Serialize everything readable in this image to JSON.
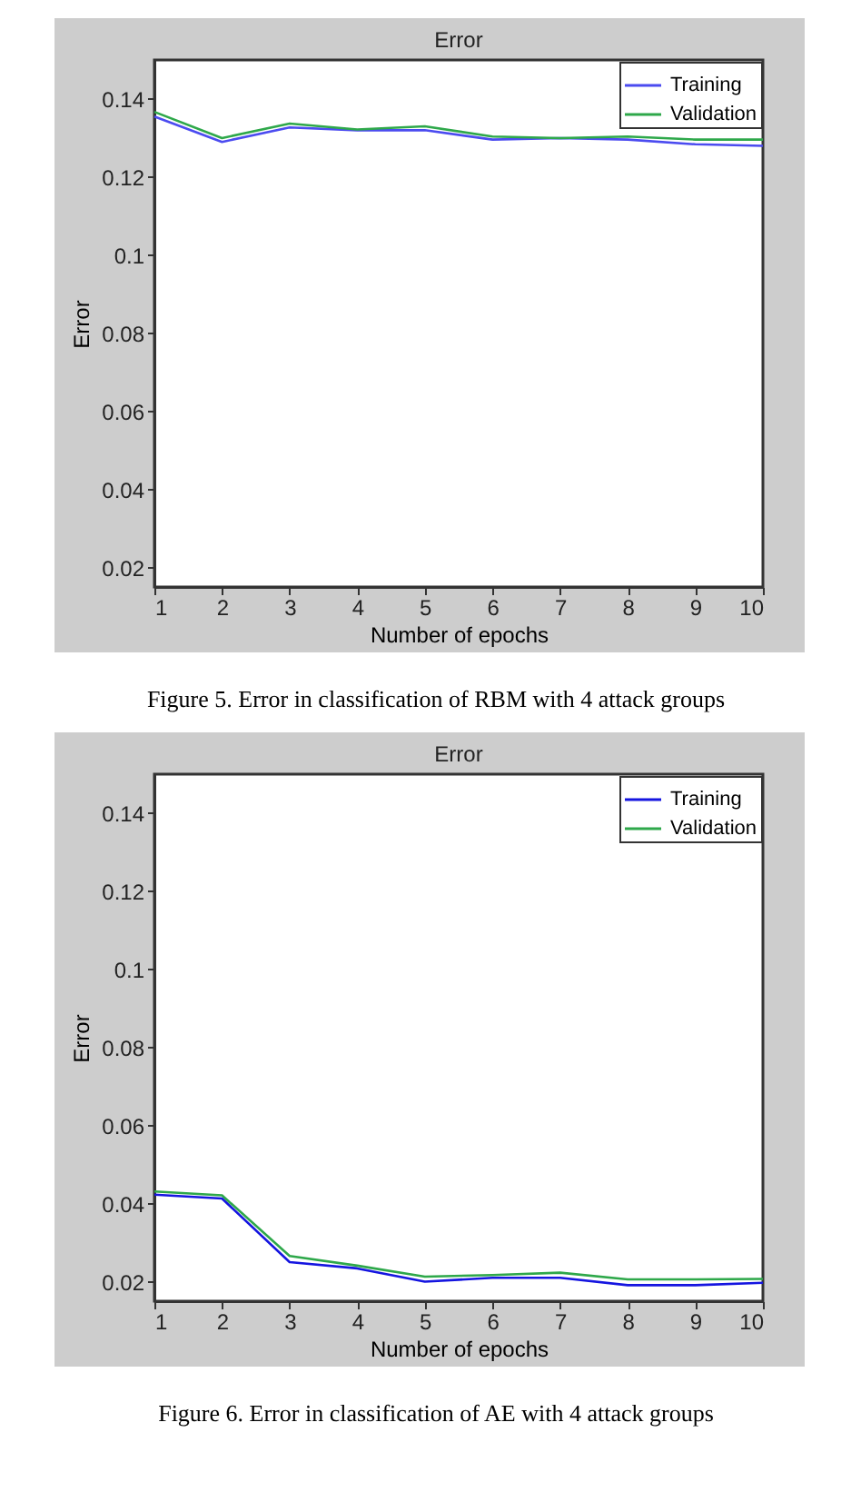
{
  "chart_data": [
    {
      "type": "line",
      "title": "Error",
      "xlabel": "Number of epochs",
      "ylabel": "Error",
      "annotations": [
        "Figure 5. Error in classification of RBM with 4 attack groups"
      ],
      "x": [
        1,
        2,
        3,
        4,
        5,
        6,
        7,
        8,
        9,
        10
      ],
      "xlim": [
        1,
        10
      ],
      "xticks": [
        1,
        2,
        3,
        4,
        5,
        6,
        7,
        8,
        9,
        10
      ],
      "ylim": [
        0.015,
        0.15
      ],
      "yticks": [
        0.02,
        0.04,
        0.06,
        0.08,
        0.1,
        0.12,
        0.14
      ],
      "legend": "top right",
      "series": [
        {
          "name": "Training",
          "color": "#4b4bf0",
          "values": [
            0.1355,
            0.129,
            0.1327,
            0.132,
            0.132,
            0.1296,
            0.13,
            0.1296,
            0.1284,
            0.128
          ]
        },
        {
          "name": "Validation",
          "color": "#2ea84a",
          "values": [
            0.1367,
            0.13,
            0.1337,
            0.1322,
            0.133,
            0.1304,
            0.13,
            0.1304,
            0.1296,
            0.1296
          ]
        }
      ]
    },
    {
      "type": "line",
      "title": "Error",
      "xlabel": "Number of epochs",
      "ylabel": "Error",
      "annotations": [
        "Figure 6. Error in classification of AE with 4 attack groups"
      ],
      "x": [
        1,
        2,
        3,
        4,
        5,
        6,
        7,
        8,
        9,
        10
      ],
      "xlim": [
        1,
        10
      ],
      "xticks": [
        1,
        2,
        3,
        4,
        5,
        6,
        7,
        8,
        9,
        10
      ],
      "ylim": [
        0.015,
        0.15
      ],
      "yticks": [
        0.02,
        0.04,
        0.06,
        0.08,
        0.1,
        0.12,
        0.14
      ],
      "legend": "top right",
      "series": [
        {
          "name": "Training",
          "color": "#1515e0",
          "values": [
            0.0423,
            0.0413,
            0.025,
            0.0234,
            0.02,
            0.021,
            0.021,
            0.0191,
            0.0191,
            0.0197
          ]
        },
        {
          "name": "Validation",
          "color": "#2ea84a",
          "values": [
            0.0431,
            0.0421,
            0.0266,
            0.0241,
            0.0213,
            0.0217,
            0.0223,
            0.0206,
            0.0206,
            0.0207
          ]
        }
      ]
    }
  ]
}
